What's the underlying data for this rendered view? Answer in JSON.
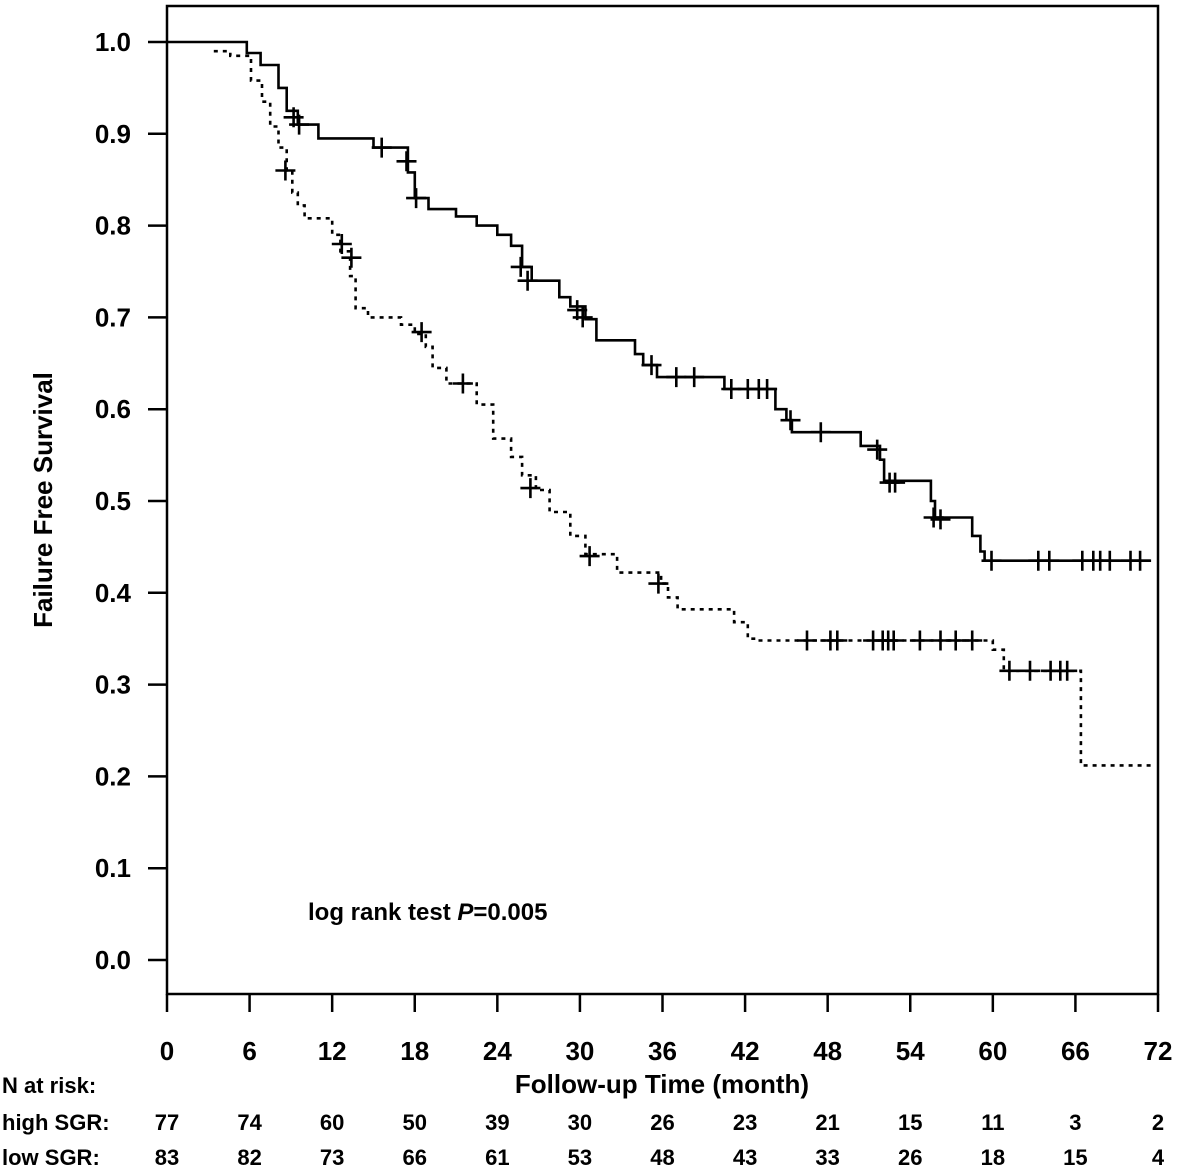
{
  "chart_data": {
    "type": "line",
    "subtype": "kaplan-meier",
    "xlabel": "Follow-up Time (month)",
    "ylabel": "Failure Free Survival",
    "xlim": [
      0,
      72
    ],
    "ylim": [
      0.0,
      1.0
    ],
    "xticks": [
      "0",
      "6",
      "12",
      "18",
      "24",
      "30",
      "36",
      "42",
      "48",
      "54",
      "60",
      "66",
      "72"
    ],
    "yticks": [
      "1.0",
      "0.9",
      "0.8",
      "0.7",
      "0.6",
      "0.5",
      "0.4",
      "0.3",
      "0.2",
      "0.1",
      "0.0"
    ],
    "grid": false,
    "annotation": {
      "prefix": "log rank test ",
      "italic": "P",
      "suffix": "=0.005"
    },
    "series": [
      {
        "line_style": "solid",
        "steps": [
          [
            0,
            1.0
          ],
          [
            5.8,
            0.988
          ],
          [
            6.8,
            0.975
          ],
          [
            8.1,
            0.95
          ],
          [
            8.7,
            0.925
          ],
          [
            9.5,
            0.91
          ],
          [
            11,
            0.895
          ],
          [
            15,
            0.885
          ],
          [
            17.5,
            0.858
          ],
          [
            18,
            0.83
          ],
          [
            19,
            0.818
          ],
          [
            21,
            0.81
          ],
          [
            22.5,
            0.8
          ],
          [
            24,
            0.79
          ],
          [
            25,
            0.778
          ],
          [
            25.8,
            0.755
          ],
          [
            26.5,
            0.74
          ],
          [
            28.5,
            0.722
          ],
          [
            29.3,
            0.712
          ],
          [
            30.4,
            0.698
          ],
          [
            31.2,
            0.675
          ],
          [
            34,
            0.66
          ],
          [
            34.6,
            0.648
          ],
          [
            35.6,
            0.635
          ],
          [
            40.5,
            0.622
          ],
          [
            44.2,
            0.6
          ],
          [
            45,
            0.588
          ],
          [
            45.4,
            0.575
          ],
          [
            48.8,
            0.575
          ],
          [
            50.4,
            0.56
          ],
          [
            51.8,
            0.545
          ],
          [
            52.1,
            0.522
          ],
          [
            55.5,
            0.5
          ],
          [
            55.8,
            0.482
          ],
          [
            58.5,
            0.462
          ],
          [
            59.1,
            0.445
          ],
          [
            59.4,
            0.435
          ],
          [
            71.5,
            0.435
          ]
        ],
        "censors": [
          [
            9.2,
            0.918
          ],
          [
            9.6,
            0.91
          ],
          [
            15.6,
            0.885
          ],
          [
            17.4,
            0.87
          ],
          [
            18.1,
            0.83
          ],
          [
            25.7,
            0.755
          ],
          [
            26.2,
            0.74
          ],
          [
            29.8,
            0.708
          ],
          [
            30.2,
            0.7
          ],
          [
            35.2,
            0.648
          ],
          [
            37,
            0.635
          ],
          [
            38.3,
            0.635
          ],
          [
            41,
            0.622
          ],
          [
            42.2,
            0.622
          ],
          [
            43,
            0.622
          ],
          [
            43.6,
            0.622
          ],
          [
            45.3,
            0.588
          ],
          [
            47.5,
            0.575
          ],
          [
            51.6,
            0.556
          ],
          [
            52.5,
            0.52
          ],
          [
            52.9,
            0.52
          ],
          [
            55.7,
            0.482
          ],
          [
            56.2,
            0.48
          ],
          [
            59.9,
            0.435
          ],
          [
            63.3,
            0.435
          ],
          [
            64.1,
            0.435
          ],
          [
            66.5,
            0.435
          ],
          [
            67.3,
            0.435
          ],
          [
            67.8,
            0.435
          ],
          [
            68.5,
            0.435
          ],
          [
            70,
            0.435
          ],
          [
            70.7,
            0.435
          ]
        ]
      },
      {
        "line_style": "dotted",
        "steps": [
          [
            3.4,
            0.99
          ],
          [
            4.6,
            0.985
          ],
          [
            6.1,
            0.958
          ],
          [
            6.9,
            0.935
          ],
          [
            7.5,
            0.908
          ],
          [
            8.1,
            0.885
          ],
          [
            8.7,
            0.86
          ],
          [
            9.1,
            0.836
          ],
          [
            9.5,
            0.822
          ],
          [
            10,
            0.808
          ],
          [
            12,
            0.79
          ],
          [
            12.6,
            0.772
          ],
          [
            13.3,
            0.745
          ],
          [
            13.7,
            0.71
          ],
          [
            14.6,
            0.7
          ],
          [
            17,
            0.692
          ],
          [
            18,
            0.682
          ],
          [
            18.8,
            0.668
          ],
          [
            19.3,
            0.645
          ],
          [
            20.3,
            0.628
          ],
          [
            22.5,
            0.605
          ],
          [
            23.7,
            0.568
          ],
          [
            25,
            0.548
          ],
          [
            25.8,
            0.528
          ],
          [
            26.8,
            0.512
          ],
          [
            27.8,
            0.488
          ],
          [
            29.3,
            0.462
          ],
          [
            30.4,
            0.442
          ],
          [
            32.7,
            0.422
          ],
          [
            35.9,
            0.41
          ],
          [
            36.4,
            0.395
          ],
          [
            37.1,
            0.382
          ],
          [
            41.2,
            0.368
          ],
          [
            42.2,
            0.35
          ],
          [
            42.8,
            0.348
          ],
          [
            60,
            0.338
          ],
          [
            60.8,
            0.315
          ],
          [
            66.4,
            0.212
          ],
          [
            71.5,
            0.212
          ]
        ],
        "censors": [
          [
            8.6,
            0.86
          ],
          [
            12.7,
            0.78
          ],
          [
            13.4,
            0.765
          ],
          [
            18.5,
            0.684
          ],
          [
            21.5,
            0.628
          ],
          [
            26.4,
            0.514
          ],
          [
            30.7,
            0.44
          ],
          [
            35.7,
            0.41
          ],
          [
            46.5,
            0.348
          ],
          [
            48.2,
            0.348
          ],
          [
            48.7,
            0.348
          ],
          [
            51.3,
            0.348
          ],
          [
            52,
            0.348
          ],
          [
            52.4,
            0.348
          ],
          [
            52.8,
            0.348
          ],
          [
            54.7,
            0.348
          ],
          [
            56.2,
            0.348
          ],
          [
            57.3,
            0.348
          ],
          [
            58.5,
            0.348
          ],
          [
            61.2,
            0.315
          ],
          [
            62.7,
            0.315
          ],
          [
            64.2,
            0.315
          ],
          [
            64.9,
            0.315
          ],
          [
            65.4,
            0.315
          ]
        ]
      }
    ],
    "risk_table": {
      "header": "N at risk:",
      "rows": [
        {
          "label": "high SGR:",
          "values": [
            "77",
            "74",
            "60",
            "50",
            "39",
            "30",
            "26",
            "23",
            "21",
            "15",
            "11",
            "3",
            "2"
          ]
        },
        {
          "label": "low SGR:",
          "values": [
            "83",
            "82",
            "73",
            "66",
            "61",
            "53",
            "48",
            "43",
            "33",
            "26",
            "18",
            "15",
            "4"
          ]
        }
      ]
    }
  }
}
